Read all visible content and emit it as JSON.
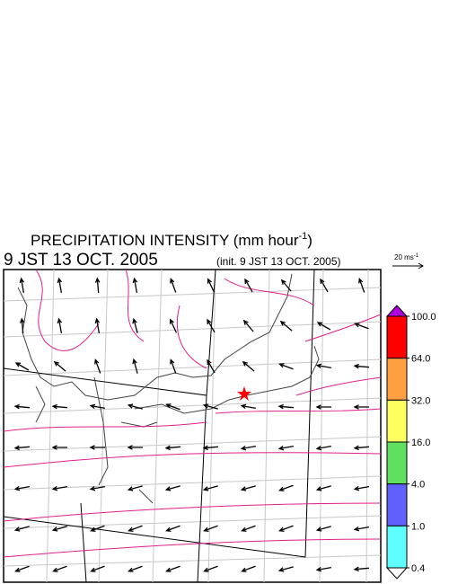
{
  "header": {
    "title": "PRECIPITATION INTENSITY (mm hour",
    "title_sup": "-1",
    "title_end": ")",
    "valid_time": "9 JST 13 OCT. 2005",
    "init_time": "(init. 9 JST 13 OCT. 2005)",
    "wind_ref": "20 ms",
    "wind_ref_sup": "-1"
  },
  "colorbar": {
    "levels": [
      {
        "value": 100,
        "label": "100.0"
      },
      {
        "value": 64,
        "label": "64.0"
      },
      {
        "value": 32,
        "label": "32.0"
      },
      {
        "value": 16,
        "label": "16.0"
      },
      {
        "value": 4,
        "label": "4.0"
      },
      {
        "value": 1,
        "label": "1.0"
      },
      {
        "value": 0.4,
        "label": "0.4"
      }
    ],
    "over_color": "#b000e0",
    "colors": [
      "#ff0000",
      "#ffa040",
      "#ffff60",
      "#60e060",
      "#6060ff",
      "#60ffff"
    ],
    "under_color": "#ffffff"
  },
  "wind_direction_deg": [
    [
      100,
      100,
      95,
      100,
      110,
      115,
      120,
      130,
      120,
      110
    ],
    [
      95,
      100,
      100,
      105,
      115,
      120,
      130,
      140,
      150,
      160
    ],
    [
      150,
      140,
      110,
      105,
      110,
      120,
      140,
      160,
      170,
      175
    ],
    [
      175,
      175,
      170,
      165,
      160,
      165,
      170,
      175,
      180,
      180
    ],
    [
      185,
      180,
      180,
      180,
      185,
      185,
      190,
      190,
      190,
      185
    ],
    [
      190,
      190,
      190,
      195,
      195,
      195,
      195,
      200,
      195,
      190
    ],
    [
      195,
      195,
      200,
      200,
      200,
      200,
      200,
      200,
      195,
      190
    ],
    [
      200,
      200,
      200,
      200,
      200,
      200,
      200,
      195,
      190,
      185
    ]
  ]
}
